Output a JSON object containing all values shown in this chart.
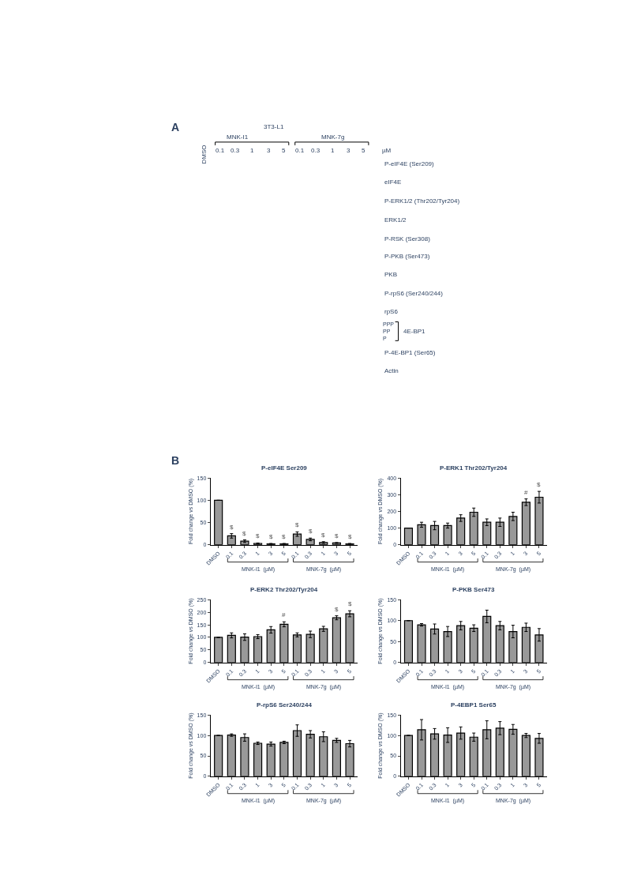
{
  "chart_data": [
    {
      "type": "other",
      "title": "A",
      "annotations": [
        "3T3-L1",
        "MNK-I1",
        "MNK-7g",
        "DMSO",
        "0.1",
        "0.3",
        "1",
        "3",
        "5",
        "0.1",
        "0.3",
        "1",
        "3",
        "5",
        "µM",
        "P-eIF4E (Ser209)",
        "eIF4E",
        "P-ERK1/2 (Thr202/Tyr204)",
        "ERK1/2",
        "P-RSK (Ser308)",
        "P-PKB (Ser473)",
        "PKB",
        "P-rpS6 (Ser240/244)",
        "rpS6",
        "PPP",
        "PP",
        "P",
        "4E-BP1",
        "P-4E-BP1 (Ser65)",
        "Actin"
      ]
    },
    {
      "type": "bar",
      "title": "P-eIF4E Ser209",
      "ylabel": "Fold change vs DMSO (%)",
      "categories": [
        "DMSO",
        "0.1",
        "0.3",
        "1",
        "3",
        "5",
        "0.1",
        "0.3",
        "1",
        "3",
        "5"
      ],
      "color": "#999999",
      "values": [
        100,
        20,
        8,
        3,
        2,
        2,
        24,
        12,
        5,
        4,
        2
      ],
      "errors": [
        null,
        5,
        3,
        1,
        1,
        1,
        5,
        3,
        2,
        1,
        1
      ],
      "value_labels": [
        null,
        "$",
        "$",
        "$",
        "$",
        "$",
        "$",
        "$",
        "$",
        "$",
        "$"
      ],
      "ylim": [
        0,
        150
      ],
      "yticks": [
        0,
        50,
        100,
        150
      ],
      "annotations": [
        "MNK-I1  (µM)",
        "MNK-7g  (µM)",
        "B"
      ]
    },
    {
      "type": "bar",
      "title": "P-ERK1 Thr202/Tyr204",
      "ylabel": "Fold change vs DMSO (%)",
      "categories": [
        "DMSO",
        "0.1",
        "0.3",
        "1",
        "3",
        "5",
        "0.1",
        "0.3",
        "1",
        "3",
        "5"
      ],
      "color": "#999999",
      "values": [
        100,
        120,
        115,
        115,
        160,
        195,
        135,
        135,
        170,
        255,
        285
      ],
      "errors": [
        null,
        15,
        25,
        15,
        20,
        25,
        20,
        25,
        25,
        20,
        35
      ],
      "value_labels": [
        null,
        null,
        null,
        null,
        null,
        null,
        null,
        null,
        null,
        "#",
        "$"
      ],
      "ylim": [
        0,
        400
      ],
      "yticks": [
        0,
        100,
        200,
        300,
        400
      ],
      "annotations": [
        "MNK-I1  (µM)",
        "MNK-7g  (µM)"
      ]
    },
    {
      "type": "bar",
      "title": "P-ERK2 Thr202/Tyr204",
      "ylabel": "Fold change vs DMSO (%)",
      "categories": [
        "DMSO",
        "0.1",
        "0.3",
        "1",
        "3",
        "5",
        "0.1",
        "0.3",
        "1",
        "3",
        "5"
      ],
      "color": "#999999",
      "values": [
        100,
        108,
        101,
        103,
        130,
        152,
        110,
        112,
        134,
        178,
        194
      ],
      "errors": [
        null,
        10,
        13,
        8,
        13,
        10,
        8,
        13,
        10,
        8,
        12
      ],
      "value_labels": [
        null,
        null,
        null,
        null,
        null,
        "#",
        null,
        null,
        null,
        "$",
        "$"
      ],
      "ylim": [
        0,
        250
      ],
      "yticks": [
        0,
        50,
        100,
        150,
        200,
        250
      ],
      "annotations": [
        "MNK-I1  (µM)",
        "MNK-7g  (µM)"
      ]
    },
    {
      "type": "bar",
      "title": "P-PKB Ser473",
      "ylabel": "Fold change vs DMSO (%)",
      "categories": [
        "DMSO",
        "0.1",
        "0.3",
        "1",
        "3",
        "5",
        "0.1",
        "0.3",
        "1",
        "3",
        "5"
      ],
      "color": "#999999",
      "values": [
        100,
        90,
        80,
        74,
        88,
        82,
        110,
        88,
        74,
        84,
        66
      ],
      "errors": [
        null,
        3,
        12,
        12,
        10,
        8,
        15,
        10,
        15,
        10,
        15
      ],
      "ylim": [
        0,
        150
      ],
      "yticks": [
        0,
        50,
        100,
        150
      ],
      "annotations": [
        "MNK-I1  (µM)",
        "MNK-7g  (µM)"
      ]
    },
    {
      "type": "bar",
      "title": "P-rpS6 Ser240/244",
      "ylabel": "Fold change vs DMSO (%)",
      "categories": [
        "DMSO",
        "0.1",
        "0.3",
        "1",
        "3",
        "5",
        "0.1",
        "0.3",
        "1",
        "3",
        "5"
      ],
      "color": "#999999",
      "values": [
        100,
        101,
        95,
        81,
        79,
        83,
        112,
        103,
        97,
        88,
        80
      ],
      "errors": [
        null,
        3,
        9,
        3,
        5,
        3,
        14,
        9,
        12,
        5,
        8
      ],
      "ylim": [
        0,
        150
      ],
      "yticks": [
        0,
        50,
        100,
        150
      ],
      "annotations": [
        "MNK-I1  (µM)",
        "MNK-7g  (µM)"
      ]
    },
    {
      "type": "bar",
      "title": "P-4EBP1 Ser65",
      "ylabel": "Fold change vs DMSO (%)",
      "categories": [
        "DMSO",
        "0.1",
        "0.3",
        "1",
        "3",
        "5",
        "0.1",
        "0.3",
        "1",
        "3",
        "5"
      ],
      "color": "#999999",
      "values": [
        100,
        114,
        104,
        101,
        106,
        96,
        114,
        118,
        115,
        100,
        93
      ],
      "errors": [
        null,
        25,
        13,
        18,
        15,
        10,
        22,
        16,
        12,
        5,
        12
      ],
      "ylim": [
        0,
        150
      ],
      "yticks": [
        0,
        50,
        100,
        150
      ],
      "annotations": [
        "MNK-I1  (µM)",
        "MNK-7g  (µM)"
      ]
    }
  ]
}
